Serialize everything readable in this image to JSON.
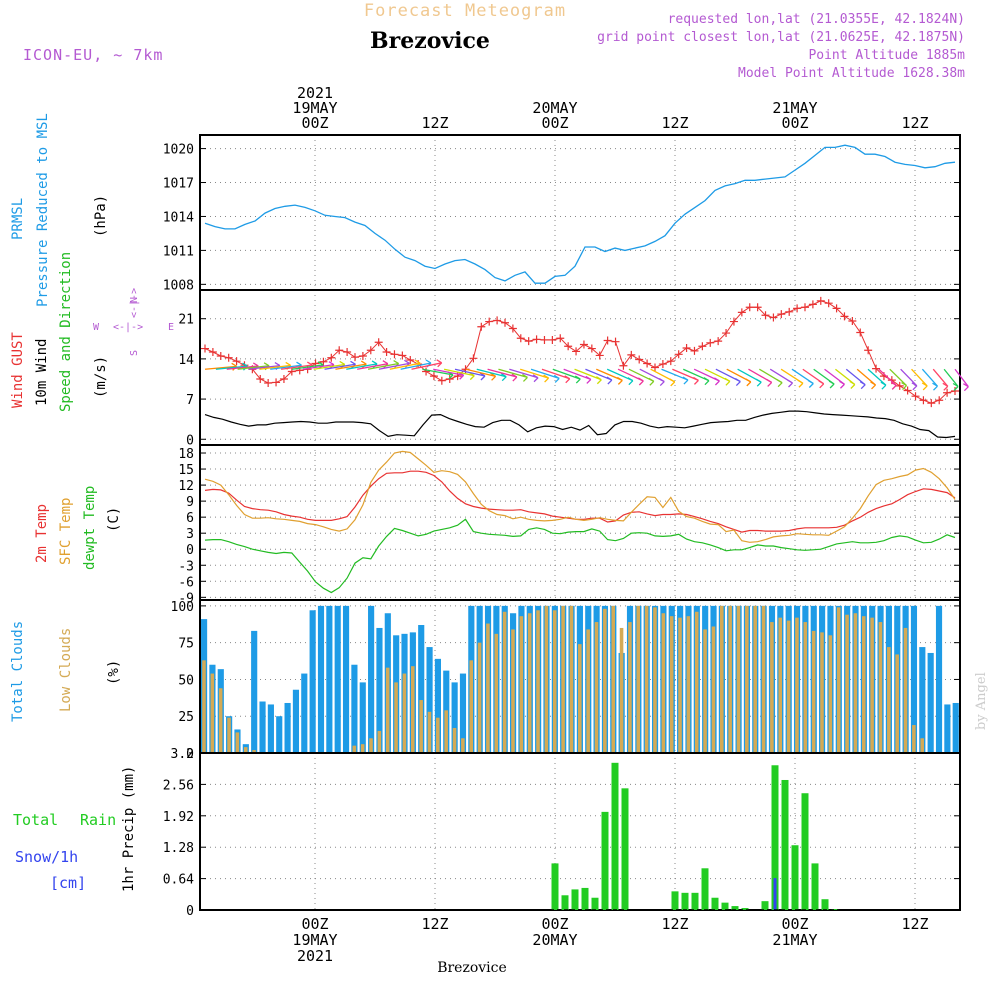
{
  "header": {
    "chart_title": "Forecast Meteogram",
    "station": "Brezovice",
    "model": "ICON-EU, ~ 7km",
    "requested": "requested lon,lat (21.0355E, 42.1824N)",
    "gridpoint": "grid point closest lon,lat (21.0625E, 42.1875N)",
    "point_alt": "Point Altitude 1885m",
    "model_alt": "Model Point Altitude 1628.38m",
    "footer_station": "Brezovice",
    "watermark": "by Angel"
  },
  "colors": {
    "pressure": "#1e9be6",
    "gust": "#e83232",
    "wind10": "#000000",
    "temp2m": "#e83232",
    "sfc_temp": "#e0a030",
    "dewpoint": "#22bb22",
    "total_clouds": "#1e9be6",
    "low_clouds": "#d4aa55",
    "rain": "#22cc22",
    "snow": "#3344ee",
    "labels_purple": "#b45ad2",
    "title_faint": "#f0c890"
  },
  "time_axis": {
    "top_labels": [
      {
        "t": 0,
        "lines": [
          "2021",
          "19MAY",
          "00Z"
        ]
      },
      {
        "t": 12,
        "lines": [
          "12Z"
        ]
      },
      {
        "t": 24,
        "lines": [
          "20MAY",
          "00Z"
        ]
      },
      {
        "t": 36,
        "lines": [
          "12Z"
        ]
      },
      {
        "t": 48,
        "lines": [
          "21MAY",
          "00Z"
        ]
      },
      {
        "t": 60,
        "lines": [
          "12Z"
        ]
      }
    ],
    "bottom_labels": [
      {
        "t": 0,
        "lines": [
          "00Z",
          "19MAY",
          "2021"
        ]
      },
      {
        "t": 12,
        "lines": [
          "12Z"
        ]
      },
      {
        "t": 24,
        "lines": [
          "00Z",
          "20MAY"
        ]
      },
      {
        "t": 36,
        "lines": [
          "12Z"
        ]
      },
      {
        "t": 48,
        "lines": [
          "00Z",
          "21MAY"
        ]
      },
      {
        "t": 60,
        "lines": [
          "12Z"
        ]
      }
    ],
    "range_hours": [
      -11.5,
      64.5
    ]
  },
  "panel_labels": {
    "pressure": {
      "a": "PRMSL",
      "b": "Pressure Reduced to MSL",
      "unit": "(hPa)"
    },
    "wind": {
      "a": "Wind GUST",
      "b": "10m Wind",
      "c": "Speed and Direction",
      "unit": "(m/s)",
      "compass": {
        "n": "N",
        "s": "S",
        "w": "W",
        "e": "E"
      }
    },
    "temp": {
      "a": "2m Temp",
      "b": "SFC Temp",
      "c": "dewpt Temp",
      "unit": "(C)"
    },
    "cloud": {
      "a": "Total Clouds",
      "b": "Low Clouds",
      "unit": "(%)"
    },
    "precip": {
      "a": "Total",
      "a2": "Rain",
      "b": "Snow/1h",
      "c": "[cm]",
      "unit": "1hr Precip (mm)"
    }
  },
  "chart_data": [
    {
      "type": "line",
      "title": "PRMSL Pressure Reduced to MSL",
      "ylabel": "(hPa)",
      "ylim": [
        1007.5,
        1021.2
      ],
      "yticks": [
        1008,
        1011,
        1014,
        1017,
        1020
      ],
      "series": [
        {
          "name": "PRMSL",
          "x": [
            -11,
            -10,
            -9,
            -8,
            -7,
            -6,
            -5,
            -4,
            -3,
            -2,
            -1,
            0,
            1,
            2,
            3,
            4,
            5,
            6,
            7,
            8,
            9,
            10,
            11,
            12,
            13,
            14,
            15,
            16,
            17,
            18,
            19,
            20,
            21,
            22,
            23,
            24,
            25,
            26,
            27,
            28,
            29,
            30,
            31,
            32,
            33,
            34,
            35,
            36,
            37,
            38,
            39,
            40,
            41,
            42,
            43,
            44,
            45,
            46,
            47,
            48,
            49,
            50,
            51,
            52,
            53,
            54,
            55,
            56,
            57,
            58,
            59,
            60,
            61,
            62,
            63,
            64
          ],
          "values": [
            1013.4,
            1013.1,
            1012.9,
            1012.9,
            1013.3,
            1013.6,
            1014.3,
            1014.7,
            1014.9,
            1015.0,
            1014.8,
            1014.5,
            1014.1,
            1014.0,
            1013.9,
            1013.5,
            1013.2,
            1012.5,
            1011.9,
            1011.1,
            1010.4,
            1010.1,
            1009.6,
            1009.4,
            1009.8,
            1010.1,
            1010.2,
            1009.8,
            1009.3,
            1008.6,
            1008.3,
            1008.8,
            1009.1,
            1008.1,
            1008.1,
            1008.7,
            1008.8,
            1009.6,
            1011.3,
            1011.3,
            1010.9,
            1011.2,
            1011.0,
            1011.2,
            1011.4,
            1011.8,
            1012.3,
            1013.4,
            1014.2,
            1014.8,
            1015.4,
            1016.3,
            1016.7,
            1016.9,
            1017.2,
            1017.2,
            1017.3,
            1017.4,
            1017.5,
            1018.1,
            1018.7,
            1019.4,
            1020.1,
            1020.1,
            1020.3,
            1020.1,
            1019.5,
            1019.5,
            1019.3,
            1018.8,
            1018.6,
            1018.5,
            1018.3,
            1018.4,
            1018.7,
            1018.8
          ]
        }
      ]
    },
    {
      "type": "line",
      "title": "Wind GUST / 10m Wind Speed and Direction",
      "ylabel": "(m/s)",
      "ylim": [
        -1,
        26
      ],
      "yticks": [
        0,
        7,
        14,
        21
      ],
      "series": [
        {
          "name": "Wind GUST",
          "values": [
            15.8,
            15.2,
            14.5,
            14.2,
            13.6,
            12.9,
            12.2,
            10.5,
            9.8,
            9.9,
            10.5,
            11.8,
            12.0,
            12.2,
            13.2,
            13.5,
            14.2,
            15.5,
            15.2,
            14.3,
            14.5,
            15.5,
            16.9,
            15.2,
            14.8,
            14.6,
            13.8,
            13.1,
            11.8,
            11.0,
            10.2,
            10.5,
            11.0,
            12.2,
            14.1,
            19.6,
            20.5,
            20.7,
            20.3,
            19.3,
            17.6,
            17.1,
            17.4,
            17.3,
            17.3,
            17.6,
            16.2,
            15.3,
            16.5,
            15.8,
            14.6,
            17.2,
            17.0,
            12.8,
            14.7,
            13.9,
            13.2,
            12.5,
            13.1,
            13.6,
            14.8,
            15.9,
            15.4,
            16.2,
            16.8,
            17.1,
            18.5,
            20.5,
            22.1,
            23.0,
            23.0,
            21.6,
            21.2,
            21.8,
            22.2,
            22.8,
            23.0,
            23.5,
            24.1,
            23.7,
            22.8,
            21.4,
            20.6,
            18.6,
            15.5,
            12.3,
            11.0,
            10.3,
            9.3,
            8.5,
            7.5,
            6.8,
            6.3,
            6.8,
            8.1,
            8.4
          ]
        },
        {
          "name": "10m Wind",
          "values": [
            4.3,
            3.8,
            3.5,
            3.0,
            2.6,
            2.3,
            2.5,
            2.5,
            2.8,
            2.9,
            3.0,
            3.1,
            3.0,
            2.8,
            2.8,
            3.0,
            3.0,
            3.0,
            2.9,
            2.7,
            1.5,
            0.5,
            0.8,
            0.7,
            0.6,
            2.5,
            4.2,
            4.3,
            3.6,
            3.1,
            2.6,
            2.2,
            2.1,
            2.9,
            3.3,
            3.3,
            2.5,
            1.3,
            2.0,
            2.3,
            2.2,
            1.7,
            2.1,
            1.6,
            2.4,
            0.8,
            1.0,
            2.5,
            3.1,
            3.1,
            2.8,
            2.3,
            2.0,
            2.2,
            2.1,
            2.0,
            2.3,
            2.6,
            2.9,
            3.0,
            3.1,
            3.3,
            3.3,
            3.8,
            4.2,
            4.5,
            4.7,
            4.9,
            4.9,
            4.8,
            4.6,
            4.4,
            4.3,
            4.2,
            4.1,
            4.0,
            3.9,
            3.7,
            3.6,
            3.3,
            2.7,
            2.3,
            1.7,
            1.5,
            0.4,
            0.3,
            0.5
          ]
        }
      ]
    },
    {
      "type": "line",
      "title": "2m Temp / SFC Temp / dewpt Temp",
      "ylabel": "(C)",
      "ylim": [
        -9.5,
        19.5
      ],
      "yticks": [
        -9,
        -6,
        -3,
        0,
        3,
        6,
        9,
        12,
        15,
        18
      ],
      "series": [
        {
          "name": "2m Temp",
          "values": [
            11.0,
            11.2,
            11.1,
            10.5,
            9.2,
            8.0,
            7.6,
            7.4,
            7.3,
            7.0,
            6.5,
            6.2,
            6.0,
            5.6,
            5.4,
            5.4,
            5.4,
            5.7,
            6.1,
            7.9,
            10.1,
            11.8,
            13.2,
            14.2,
            14.3,
            14.3,
            14.6,
            14.6,
            14.4,
            13.8,
            12.6,
            10.9,
            9.5,
            8.5,
            8.0,
            7.7,
            7.5,
            7.4,
            7.3,
            7.3,
            7.4,
            7.0,
            6.8,
            6.6,
            6.2,
            6.0,
            5.8,
            5.6,
            5.6,
            5.8,
            5.8,
            5.1,
            5.3,
            6.4,
            6.9,
            7.0,
            6.6,
            6.3,
            6.5,
            6.5,
            6.6,
            6.5,
            6.1,
            5.7,
            5.2,
            4.8,
            4.2,
            3.7,
            3.2,
            3.5,
            3.5,
            3.4,
            3.4,
            3.4,
            3.5,
            3.8,
            4.0,
            4.0,
            4.0,
            4.0,
            4.1,
            4.5,
            5.3,
            6.0,
            6.9,
            7.6,
            8.1,
            8.5,
            9.3,
            10.2,
            10.8,
            11.3,
            11.2,
            10.9,
            10.6,
            9.6
          ]
        },
        {
          "name": "SFC Temp",
          "values": [
            13.1,
            12.7,
            12.0,
            10.2,
            8.2,
            6.5,
            5.8,
            5.8,
            5.9,
            5.7,
            5.6,
            5.4,
            5.2,
            4.8,
            4.6,
            4.2,
            3.7,
            3.4,
            3.8,
            5.5,
            8.3,
            12.5,
            14.8,
            16.3,
            18.0,
            18.3,
            18.1,
            16.9,
            15.7,
            14.4,
            14.7,
            14.5,
            14.0,
            12.6,
            10.4,
            8.4,
            7.2,
            6.5,
            6.3,
            5.7,
            6.0,
            5.6,
            5.4,
            5.3,
            5.4,
            5.6,
            6.0,
            5.6,
            5.4,
            5.6,
            5.9,
            5.6,
            5.4,
            5.3,
            6.9,
            8.4,
            9.8,
            9.7,
            7.8,
            9.7,
            7.1,
            6.1,
            5.8,
            5.2,
            4.7,
            4.6,
            3.3,
            3.6,
            1.6,
            1.3,
            1.4,
            1.8,
            2.3,
            2.5,
            2.6,
            2.9,
            2.8,
            2.7,
            2.7,
            2.6,
            3.4,
            4.2,
            5.8,
            7.6,
            10.0,
            12.1,
            12.9,
            13.2,
            13.6,
            13.9,
            14.8,
            15.1,
            14.4,
            13.2,
            11.5,
            9.3
          ]
        },
        {
          "name": "dewpt Temp",
          "values": [
            1.7,
            1.8,
            1.8,
            1.4,
            0.9,
            0.5,
            0.0,
            -0.3,
            -0.6,
            -0.8,
            -0.6,
            -0.7,
            -2.4,
            -4.1,
            -6.1,
            -7.3,
            -8.1,
            -7.2,
            -5.4,
            -2.6,
            -1.6,
            -1.8,
            0.6,
            2.4,
            3.9,
            3.5,
            3.0,
            2.5,
            2.8,
            3.4,
            3.7,
            4.0,
            4.5,
            5.6,
            3.3,
            3.0,
            2.8,
            2.7,
            2.6,
            2.4,
            2.5,
            3.7,
            4.0,
            3.7,
            3.0,
            2.9,
            3.2,
            3.3,
            3.3,
            3.8,
            3.4,
            1.8,
            1.6,
            2.0,
            3.0,
            3.1,
            3.0,
            2.5,
            2.4,
            2.5,
            2.8,
            1.9,
            1.4,
            1.2,
            0.8,
            0.3,
            -0.3,
            -0.1,
            -0.1,
            0.3,
            0.8,
            0.6,
            0.6,
            0.3,
            0.1,
            -0.1,
            -0.2,
            -0.1,
            0.0,
            0.5,
            1.0,
            1.2,
            1.4,
            1.2,
            1.2,
            1.3,
            1.6,
            2.2,
            2.5,
            2.3,
            1.7,
            1.2,
            1.3,
            1.9,
            2.7,
            2.2
          ]
        }
      ]
    },
    {
      "type": "bar",
      "title": "Total Clouds / Low Clouds",
      "ylabel": "(%)",
      "ylim": [
        0,
        104
      ],
      "yticks": [
        0,
        25,
        50,
        75,
        100
      ],
      "series": [
        {
          "name": "Total Clouds",
          "values": [
            91,
            60,
            57,
            25,
            16,
            6,
            83,
            35,
            33,
            25,
            34,
            43,
            54,
            97,
            100,
            100,
            100,
            100,
            60,
            48,
            100,
            85,
            95,
            80,
            81,
            82,
            87,
            72,
            64,
            56,
            48,
            54,
            100,
            100,
            100,
            100,
            100,
            95,
            100,
            100,
            100,
            100,
            100,
            100,
            100,
            100,
            100,
            100,
            100,
            100,
            68,
            100,
            100,
            100,
            100,
            100,
            100,
            100,
            100,
            100,
            100,
            100,
            100,
            100,
            100,
            100,
            100,
            100,
            100,
            100,
            100,
            100,
            100,
            100,
            100,
            100,
            100,
            100,
            100,
            100,
            100,
            100,
            100,
            100,
            100,
            100,
            72,
            68,
            100,
            33,
            34
          ]
        },
        {
          "name": "Low Clouds",
          "values": [
            63,
            54,
            44,
            24,
            14,
            4,
            2,
            0,
            0,
            0,
            0,
            0,
            0,
            0,
            0,
            0,
            0,
            0,
            5,
            6,
            10,
            15,
            58,
            48,
            54,
            59,
            36,
            28,
            24,
            29,
            17,
            10,
            63,
            75,
            88,
            81,
            96,
            84,
            93,
            95,
            97,
            100,
            97,
            100,
            100,
            74,
            84,
            89,
            98,
            100,
            85,
            89,
            100,
            100,
            99,
            95,
            93,
            92,
            93,
            96,
            84,
            86,
            100,
            100,
            100,
            100,
            100,
            100,
            89,
            92,
            90,
            92,
            89,
            83,
            82,
            80,
            99,
            94,
            95,
            93,
            92,
            89,
            72,
            67,
            85,
            19,
            10
          ]
        }
      ]
    },
    {
      "type": "bar",
      "title": "1hr Precip",
      "ylabel": "1hr Precip (mm)",
      "ylim": [
        0,
        3.2
      ],
      "yticks": [
        0,
        0.64,
        1.28,
        1.92,
        2.56,
        3.2
      ],
      "series": [
        {
          "name": "Total Rain",
          "x": [
            24,
            25,
            26,
            27,
            28,
            29,
            30,
            31,
            32,
            33,
            36,
            37,
            38,
            39,
            40,
            41,
            42,
            43,
            45,
            46,
            47,
            48,
            49,
            50,
            51,
            52,
            53
          ],
          "values": [
            0.95,
            0.3,
            0.42,
            0.45,
            0.25,
            2.0,
            3.0,
            2.48,
            0.0,
            0.0,
            0.38,
            0.35,
            0.35,
            0.85,
            0.25,
            0.15,
            0.08,
            0.04,
            0.18,
            2.95,
            2.65,
            1.32,
            2.38,
            0.95,
            0.22,
            0.02,
            0.0
          ]
        },
        {
          "name": "Snow/1h",
          "x": [
            46
          ],
          "values": [
            0.65
          ]
        }
      ]
    }
  ]
}
